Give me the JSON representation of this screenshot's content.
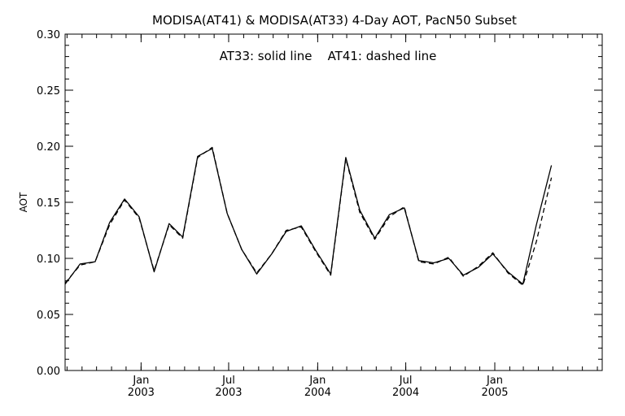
{
  "chart_data": {
    "type": "line",
    "title": "MODISA(AT41) & MODISA(AT33) 4-Day AOT, PacN50 Subset",
    "annotation": "AT33: solid line    AT41: dashed line",
    "ylabel": "AOT",
    "xlabel": "",
    "ylim": [
      0.0,
      0.3
    ],
    "y_ticks": [
      "0.00",
      "0.05",
      "0.10",
      "0.15",
      "0.20",
      "0.25",
      "0.30"
    ],
    "x_range": [
      "2002-07-28",
      "2005-08-11"
    ],
    "x_ticks": [
      {
        "date": "2003-01-01",
        "month": "Jan",
        "year": "2003"
      },
      {
        "date": "2003-07-01",
        "month": "Jul",
        "year": "2003"
      },
      {
        "date": "2004-01-01",
        "month": "Jan",
        "year": "2004"
      },
      {
        "date": "2004-07-01",
        "month": "Jul",
        "year": "2004"
      },
      {
        "date": "2005-01-01",
        "month": "Jan",
        "year": "2005"
      }
    ],
    "x": [
      "2002-07-28",
      "2002-08-28",
      "2002-09-28",
      "2002-10-28",
      "2002-11-28",
      "2002-12-28",
      "2003-01-28",
      "2003-02-28",
      "2003-03-28",
      "2003-04-28",
      "2003-05-28",
      "2003-06-28",
      "2003-07-28",
      "2003-08-28",
      "2003-09-28",
      "2003-10-28",
      "2003-11-28",
      "2003-12-28",
      "2004-01-28",
      "2004-02-28",
      "2004-03-28",
      "2004-04-28",
      "2004-05-28",
      "2004-06-28",
      "2004-07-28",
      "2004-08-28",
      "2004-09-28",
      "2004-10-28",
      "2004-11-28",
      "2004-12-28",
      "2005-01-28",
      "2005-02-28",
      "2005-03-28",
      "2005-04-28"
    ],
    "series": [
      {
        "name": "AT33",
        "style": "solid",
        "values": [
          0.077,
          0.095,
          0.097,
          0.132,
          0.153,
          0.137,
          0.088,
          0.131,
          0.119,
          0.191,
          0.198,
          0.14,
          0.108,
          0.086,
          0.104,
          0.124,
          0.129,
          0.107,
          0.086,
          0.19,
          0.143,
          0.118,
          0.139,
          0.145,
          0.098,
          0.096,
          0.1,
          0.085,
          0.092,
          0.104,
          0.088,
          0.077,
          0.13,
          0.183
        ]
      },
      {
        "name": "AT41",
        "style": "dashed",
        "values": [
          0.078,
          0.094,
          0.097,
          0.13,
          0.152,
          0.136,
          0.089,
          0.13,
          0.118,
          0.19,
          0.199,
          0.14,
          0.108,
          0.087,
          0.104,
          0.125,
          0.128,
          0.106,
          0.085,
          0.189,
          0.141,
          0.117,
          0.137,
          0.146,
          0.097,
          0.095,
          0.101,
          0.084,
          0.093,
          0.105,
          0.087,
          0.076,
          0.115,
          0.172
        ]
      }
    ]
  }
}
